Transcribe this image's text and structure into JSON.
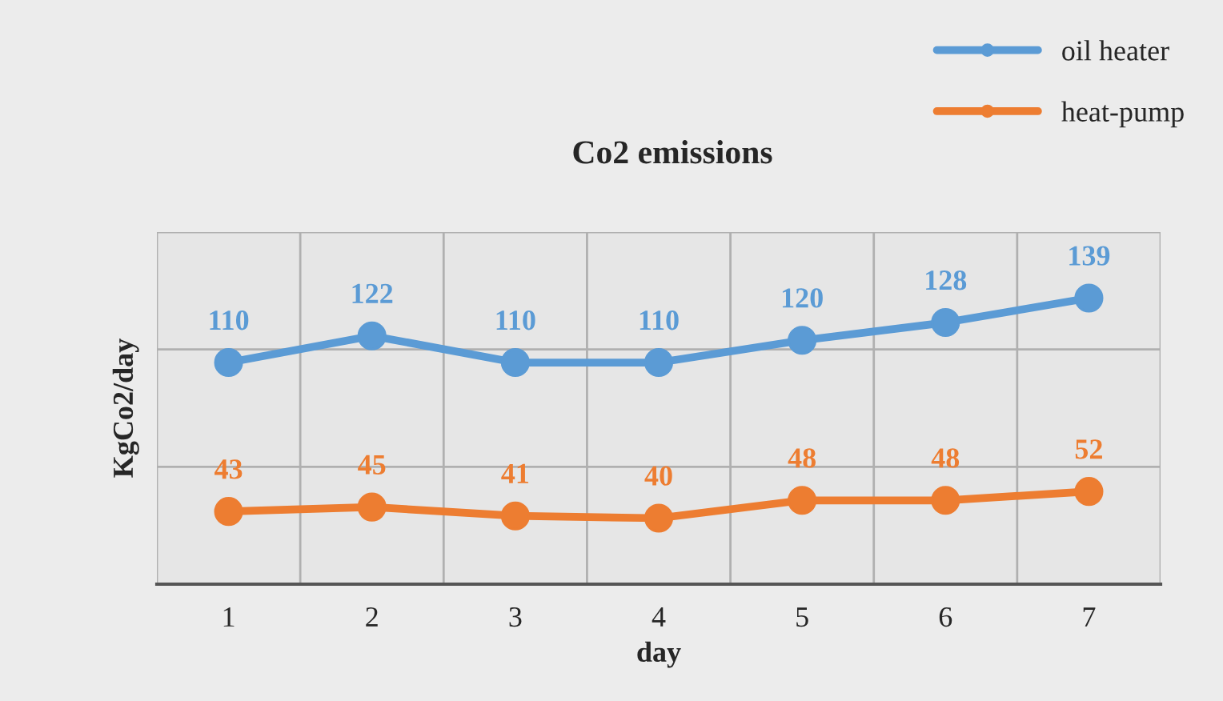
{
  "chart_data": {
    "type": "line",
    "title": "Co2 emissions",
    "xlabel": "day",
    "ylabel": "KgCo2/day",
    "categories": [
      "1",
      "2",
      "3",
      "4",
      "5",
      "6",
      "7"
    ],
    "series": [
      {
        "name": "oil heater",
        "color": "#5b9bd5",
        "values": [
          110,
          122,
          110,
          110,
          120,
          128,
          139
        ]
      },
      {
        "name": "heat-pump",
        "color": "#ed7d31",
        "values": [
          43,
          45,
          41,
          40,
          48,
          48,
          52
        ]
      }
    ],
    "tick_labels": "x",
    "grid": true,
    "legend": "top right",
    "marker": "circle",
    "line_style": "solid",
    "data_labels": true
  }
}
